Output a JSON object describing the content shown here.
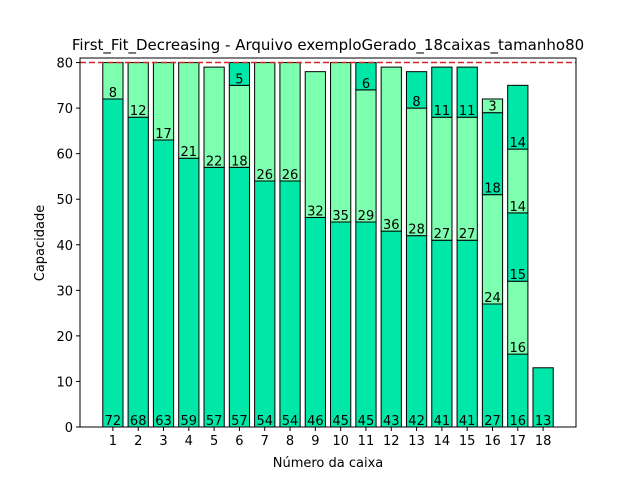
{
  "chart_data": {
    "type": "stacked_bar",
    "title": "First_Fit_Decreasing - Arquivo exemploGerado_18caixas_tamanho80",
    "x_label": "Número da caixa",
    "y_label": "Capacidade",
    "categories": [
      "1",
      "2",
      "3",
      "4",
      "5",
      "6",
      "7",
      "8",
      "9",
      "10",
      "11",
      "12",
      "13",
      "14",
      "15",
      "16",
      "17",
      "18"
    ],
    "series": [
      {
        "color": "#00e8a8",
        "values": [
          72,
          68,
          63,
          59,
          57,
          57,
          54,
          54,
          46,
          45,
          45,
          43,
          42,
          41,
          41,
          27,
          16,
          13
        ]
      },
      {
        "color": "#7dffb0",
        "values": [
          8,
          12,
          17,
          21,
          22,
          18,
          26,
          26,
          32,
          35,
          29,
          36,
          28,
          27,
          27,
          24,
          16,
          null
        ]
      },
      {
        "color": "#00e8a8",
        "values": [
          null,
          null,
          null,
          null,
          null,
          5,
          null,
          null,
          null,
          null,
          6,
          null,
          8,
          11,
          11,
          18,
          15,
          null
        ]
      },
      {
        "color": "#7dffb0",
        "values": [
          null,
          null,
          null,
          null,
          null,
          null,
          null,
          null,
          null,
          null,
          null,
          null,
          null,
          null,
          null,
          3,
          14,
          null
        ]
      },
      {
        "color": "#00e8a8",
        "values": [
          null,
          null,
          null,
          null,
          null,
          null,
          null,
          null,
          null,
          null,
          null,
          null,
          null,
          null,
          null,
          null,
          14,
          null
        ]
      }
    ],
    "ylim": [
      0,
      81
    ],
    "yticks": [
      0,
      10,
      20,
      30,
      40,
      50,
      60,
      70,
      80
    ],
    "reference_line": 80,
    "reference_color": "#d62728"
  }
}
